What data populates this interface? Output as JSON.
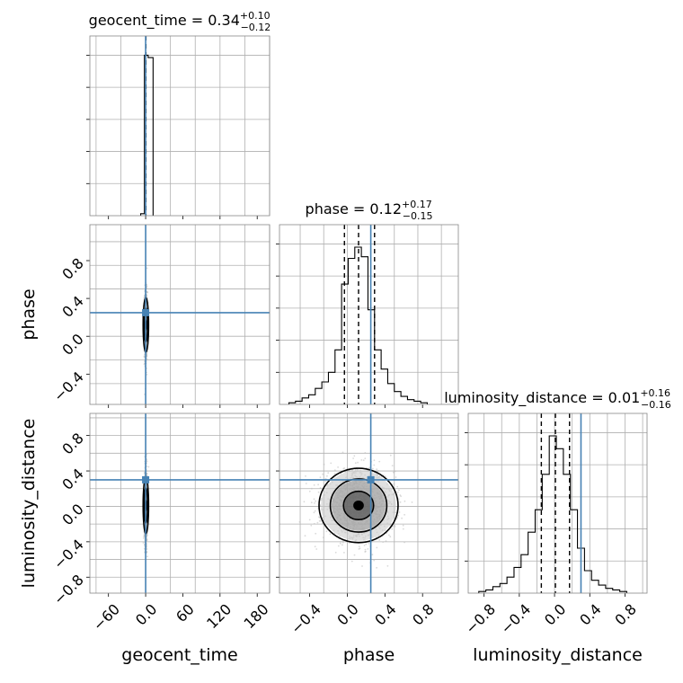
{
  "chart_data": {
    "type": "corner",
    "parameters": [
      "geocent_time",
      "phase",
      "luminosity_distance"
    ],
    "truths": {
      "geocent_time": 0.0,
      "phase": 0.25,
      "luminosity_distance": 0.3
    },
    "truth_color": "#4682b4",
    "panels": [
      {
        "kind": "histogram",
        "param": "geocent_time",
        "title_name": "geocent_time",
        "median": "0.34",
        "plus": "+0.10",
        "minus": "−0.12",
        "xlim": [
          -90,
          200
        ],
        "quantiles": [
          0.22,
          0.34,
          0.44
        ],
        "bins": [
          {
            "x0": -8,
            "x1": -2,
            "h": 0.012
          },
          {
            "x0": -2,
            "x1": 4,
            "h": 1.0
          },
          {
            "x0": 4,
            "x1": 12,
            "h": 0.985
          }
        ]
      },
      {
        "kind": "histogram",
        "param": "phase",
        "title_name": "phase",
        "median": "0.12",
        "plus": "+0.17",
        "minus": "−0.15",
        "xlim": [
          -0.72,
          1.18
        ],
        "quantiles": [
          -0.03,
          0.12,
          0.29
        ],
        "bins": [
          {
            "x0": -0.62,
            "x1": -0.55,
            "h": 0.01
          },
          {
            "x0": -0.55,
            "x1": -0.48,
            "h": 0.02
          },
          {
            "x0": -0.48,
            "x1": -0.41,
            "h": 0.04
          },
          {
            "x0": -0.41,
            "x1": -0.34,
            "h": 0.06
          },
          {
            "x0": -0.34,
            "x1": -0.27,
            "h": 0.1
          },
          {
            "x0": -0.27,
            "x1": -0.2,
            "h": 0.14
          },
          {
            "x0": -0.2,
            "x1": -0.13,
            "h": 0.2
          },
          {
            "x0": -0.13,
            "x1": -0.06,
            "h": 0.34
          },
          {
            "x0": -0.06,
            "x1": 0.01,
            "h": 0.75
          },
          {
            "x0": 0.01,
            "x1": 0.08,
            "h": 0.91
          },
          {
            "x0": 0.08,
            "x1": 0.15,
            "h": 0.98
          },
          {
            "x0": 0.15,
            "x1": 0.22,
            "h": 0.92
          },
          {
            "x0": 0.22,
            "x1": 0.29,
            "h": 0.59
          },
          {
            "x0": 0.29,
            "x1": 0.36,
            "h": 0.34
          },
          {
            "x0": 0.36,
            "x1": 0.43,
            "h": 0.22
          },
          {
            "x0": 0.43,
            "x1": 0.5,
            "h": 0.13
          },
          {
            "x0": 0.5,
            "x1": 0.57,
            "h": 0.08
          },
          {
            "x0": 0.57,
            "x1": 0.64,
            "h": 0.05
          },
          {
            "x0": 0.64,
            "x1": 0.71,
            "h": 0.03
          },
          {
            "x0": 0.71,
            "x1": 0.78,
            "h": 0.02
          },
          {
            "x0": 0.78,
            "x1": 0.85,
            "h": 0.01
          }
        ]
      },
      {
        "kind": "histogram",
        "param": "luminosity_distance",
        "title_name": "luminosity_distance",
        "median": "0.01",
        "plus": "+0.16",
        "minus": "−0.16",
        "xlim": [
          -0.98,
          1.05
        ],
        "quantiles": [
          -0.15,
          0.01,
          0.17
        ],
        "bins": [
          {
            "x0": -0.86,
            "x1": -0.78,
            "h": 0.01
          },
          {
            "x0": -0.78,
            "x1": -0.7,
            "h": 0.02
          },
          {
            "x0": -0.7,
            "x1": -0.62,
            "h": 0.04
          },
          {
            "x0": -0.62,
            "x1": -0.54,
            "h": 0.06
          },
          {
            "x0": -0.54,
            "x1": -0.46,
            "h": 0.1
          },
          {
            "x0": -0.46,
            "x1": -0.38,
            "h": 0.16
          },
          {
            "x0": -0.38,
            "x1": -0.3,
            "h": 0.24
          },
          {
            "x0": -0.3,
            "x1": -0.22,
            "h": 0.38
          },
          {
            "x0": -0.22,
            "x1": -0.14,
            "h": 0.52
          },
          {
            "x0": -0.14,
            "x1": -0.06,
            "h": 0.74
          },
          {
            "x0": -0.06,
            "x1": 0.02,
            "h": 0.98
          },
          {
            "x0": 0.02,
            "x1": 0.1,
            "h": 0.9
          },
          {
            "x0": 0.1,
            "x1": 0.18,
            "h": 0.74
          },
          {
            "x0": 0.18,
            "x1": 0.26,
            "h": 0.52
          },
          {
            "x0": 0.26,
            "x1": 0.34,
            "h": 0.28
          },
          {
            "x0": 0.34,
            "x1": 0.42,
            "h": 0.14
          },
          {
            "x0": 0.42,
            "x1": 0.5,
            "h": 0.08
          },
          {
            "x0": 0.5,
            "x1": 0.58,
            "h": 0.05
          },
          {
            "x0": 0.58,
            "x1": 0.66,
            "h": 0.03
          },
          {
            "x0": 0.66,
            "x1": 0.74,
            "h": 0.02
          },
          {
            "x0": 0.74,
            "x1": 0.82,
            "h": 0.01
          }
        ]
      },
      {
        "kind": "2d",
        "xparam": "geocent_time",
        "yparam": "phase",
        "xlim": [
          -90,
          200
        ],
        "ylim": [
          -0.72,
          1.18
        ],
        "center": [
          0.34,
          0.12
        ],
        "spread": [
          1.0,
          0.14
        ],
        "contours": [
          {
            "rx": 2.8,
            "ry": 0.18
          },
          {
            "rx": 4.4,
            "ry": 0.29
          }
        ],
        "xticks": [],
        "yticks": [
          -0.4,
          0.0,
          0.4,
          0.8
        ],
        "ylabel": "phase"
      },
      {
        "kind": "2d",
        "xparam": "geocent_time",
        "yparam": "luminosity_distance",
        "xlim": [
          -90,
          200
        ],
        "ylim": [
          -0.98,
          1.05
        ],
        "center": [
          0.34,
          0.01
        ],
        "spread": [
          1.0,
          0.16
        ],
        "contours": [
          {
            "rx": 2.8,
            "ry": 0.2
          },
          {
            "rx": 4.4,
            "ry": 0.32
          }
        ],
        "xticks": [
          -60,
          0,
          60,
          120,
          180
        ],
        "yticks": [
          -0.8,
          -0.4,
          0.0,
          0.4,
          0.8
        ],
        "xlabel": "geocent_time",
        "ylabel": "luminosity_distance"
      },
      {
        "kind": "2d",
        "xparam": "phase",
        "yparam": "luminosity_distance",
        "xlim": [
          -0.72,
          1.18
        ],
        "ylim": [
          -0.98,
          1.05
        ],
        "center": [
          0.12,
          0.01
        ],
        "spread": [
          0.15,
          0.16
        ],
        "contours": [
          {
            "rx": 0.16,
            "ry": 0.16
          },
          {
            "rx": 0.3,
            "ry": 0.3
          },
          {
            "rx": 0.42,
            "ry": 0.42
          }
        ],
        "xticks": [
          -0.4,
          0.0,
          0.4,
          0.8
        ],
        "yticks": [],
        "xlabel": "phase"
      }
    ],
    "diag_xticks": {
      "geocent_time": [],
      "phase": [],
      "luminosity_distance": [
        -0.8,
        -0.4,
        0.0,
        0.4,
        0.8
      ]
    },
    "diag_xlabel": {
      "luminosity_distance": "luminosity_distance"
    },
    "grid": true
  }
}
